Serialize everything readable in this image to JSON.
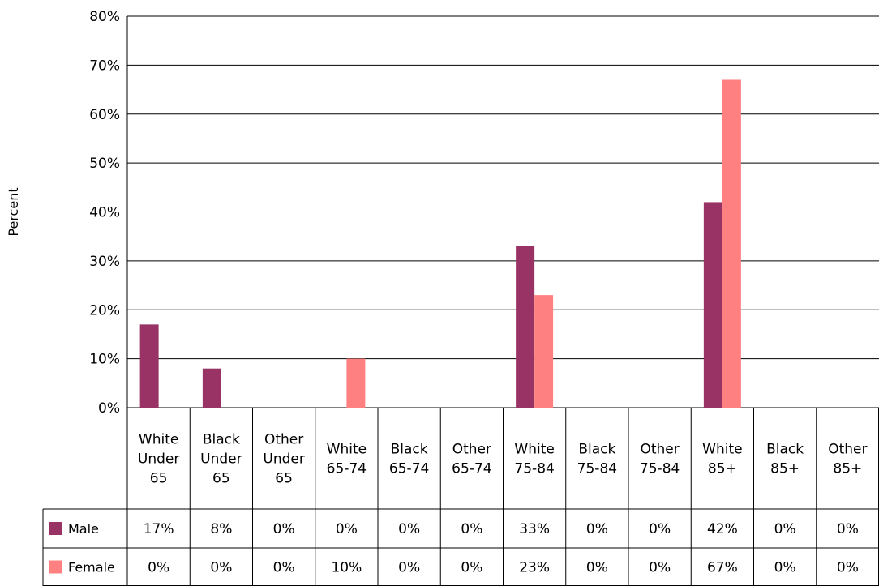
{
  "chart_data": {
    "type": "bar",
    "ylabel": "Percent",
    "ylim": [
      0,
      80
    ],
    "yticks": [
      0,
      10,
      20,
      30,
      40,
      50,
      60,
      70,
      80
    ],
    "ytick_suffix": "%",
    "grid": true,
    "legend": "data-table",
    "categories": [
      [
        "White",
        "Under",
        "65"
      ],
      [
        "Black",
        "Under",
        "65"
      ],
      [
        "Other",
        "Under",
        "65"
      ],
      [
        "White",
        "65-74"
      ],
      [
        "Black",
        "65-74"
      ],
      [
        "Other",
        "65-74"
      ],
      [
        "White",
        "75-84"
      ],
      [
        "Black",
        "75-84"
      ],
      [
        "Other",
        "75-84"
      ],
      [
        "White",
        "85+"
      ],
      [
        "Black",
        "85+"
      ],
      [
        "Other",
        "85+"
      ]
    ],
    "series": [
      {
        "name": "Male",
        "color": "#993366",
        "values": [
          17,
          8,
          0,
          0,
          0,
          0,
          33,
          0,
          0,
          42,
          0,
          0
        ],
        "labels": [
          "17%",
          "8%",
          "0%",
          "0%",
          "0%",
          "0%",
          "33%",
          "0%",
          "0%",
          "42%",
          "0%",
          "0%"
        ]
      },
      {
        "name": "Female",
        "color": "#FF8080",
        "values": [
          0,
          0,
          0,
          10,
          0,
          0,
          23,
          0,
          0,
          67,
          0,
          0
        ],
        "labels": [
          "0%",
          "0%",
          "0%",
          "10%",
          "0%",
          "0%",
          "23%",
          "0%",
          "0%",
          "67%",
          "0%",
          "0%"
        ]
      }
    ]
  }
}
